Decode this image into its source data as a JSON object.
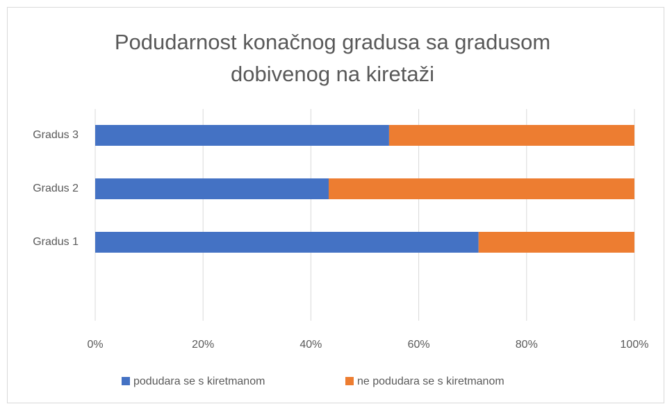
{
  "chart_data": {
    "type": "stacked_barh",
    "title": "Podudarnost konačnog gradusa sa gradusom dobivenog na kiretaži",
    "categories": [
      "Gradus 1",
      "Gradus 2",
      "Gradus 3"
    ],
    "series": [
      {
        "name": "podudara se s kiretmanom",
        "color": "#4472c4",
        "values": [
          71.1,
          43.3,
          54.5
        ]
      },
      {
        "name": "ne podudara se s kiretmanom",
        "color": "#ed7d31",
        "values": [
          28.9,
          56.7,
          45.5
        ]
      }
    ],
    "xlim": [
      0,
      100
    ],
    "xticks": [
      {
        "value": 0,
        "label": "0%"
      },
      {
        "value": 20,
        "label": "20%"
      },
      {
        "value": 40,
        "label": "40%"
      },
      {
        "value": 60,
        "label": "60%"
      },
      {
        "value": 80,
        "label": "80%"
      },
      {
        "value": 100,
        "label": "100%"
      }
    ],
    "grid": true,
    "legend": "bottom"
  }
}
